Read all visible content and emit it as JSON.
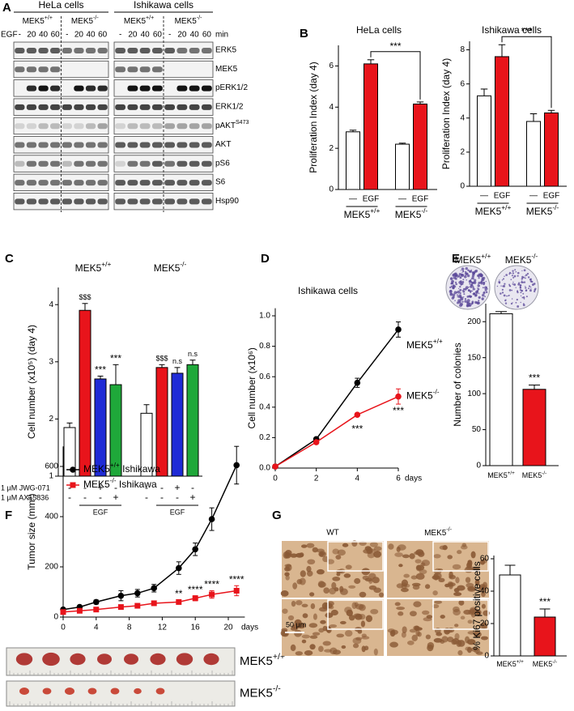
{
  "panel_letters": [
    "A",
    "B",
    "C",
    "D",
    "E",
    "F",
    "G"
  ],
  "panel_a": {
    "cell_lines": [
      "HeLa cells",
      "Ishikawa cells"
    ],
    "genotypes": [
      {
        "text": "MEK5",
        "sup": "+/+"
      },
      {
        "text": "MEK5",
        "sup": "-/-"
      }
    ],
    "treatment": "EGF",
    "timepoints": [
      "-",
      "20",
      "40",
      "60"
    ],
    "time_unit": "min",
    "proteins": [
      "ERK5",
      "MEK5",
      "pERK1/2",
      "ERK1/2",
      {
        "text": "pAKT",
        "sup": "S473"
      },
      "AKT",
      "pS6",
      "S6",
      "Hsp90"
    ]
  },
  "chart_data": [
    {
      "type": "bar",
      "title": "HeLa cells",
      "ylabel": "Proliferation Index (day 4)",
      "categories": [
        "—",
        "EGF",
        "—",
        "EGF"
      ],
      "groups": [
        {
          "text": "MEK5",
          "sup": "+/+"
        },
        {
          "text": "MEK5",
          "sup": "-/-"
        }
      ],
      "values": [
        2.8,
        6.1,
        2.2,
        4.15
      ],
      "errors": [
        0.08,
        0.2,
        0.05,
        0.1
      ],
      "colors": [
        "#ffffff",
        "#e8141b",
        "#ffffff",
        "#e8141b"
      ],
      "ylim": [
        0,
        7
      ],
      "yticks": [
        0,
        2,
        4,
        6
      ],
      "significance": "***"
    },
    {
      "type": "bar",
      "title": "Ishikawa cells",
      "ylabel": "Proliferation Index (day 4)",
      "categories": [
        "—",
        "EGF",
        "—",
        "EGF"
      ],
      "groups": [
        {
          "text": "MEK5",
          "sup": "+/+"
        },
        {
          "text": "MEK5",
          "sup": "-/-"
        }
      ],
      "values": [
        5.3,
        7.6,
        3.8,
        4.3
      ],
      "errors": [
        0.4,
        0.7,
        0.45,
        0.15
      ],
      "colors": [
        "#ffffff",
        "#e8141b",
        "#ffffff",
        "#e8141b"
      ],
      "ylim": [
        0,
        8.5
      ],
      "yticks": [
        0,
        2,
        4,
        6,
        8
      ],
      "significance": "***"
    },
    {
      "type": "bar",
      "ylabel": "Cell number (x10⁵) (day 4)",
      "groups": [
        {
          "text": "MEK5",
          "sup": "+/+"
        },
        {
          "text": "MEK5",
          "sup": "-/-"
        }
      ],
      "values": [
        1.85,
        3.9,
        2.7,
        2.6,
        2.1,
        2.9,
        2.8,
        2.95
      ],
      "errors": [
        0.08,
        0.12,
        0.05,
        0.35,
        0.15,
        0.05,
        0.1,
        0.08
      ],
      "colors": [
        "#ffffff",
        "#e8141b",
        "#1f2bd6",
        "#1fa83a",
        "#ffffff",
        "#e8141b",
        "#1f2bd6",
        "#1fa83a"
      ],
      "value_annotations": [
        null,
        "$$$",
        "***",
        "***",
        null,
        "$$$",
        "n.s",
        "n.s"
      ],
      "treatments": [
        {
          "name": "1 µM JWG-071",
          "levels": [
            "-",
            "-",
            "+",
            "-",
            "-",
            "-",
            "+",
            "-"
          ]
        },
        {
          "name": "1 µM AX15836",
          "levels": [
            "-",
            "-",
            "-",
            "+",
            "-",
            "-",
            "-",
            "+"
          ]
        }
      ],
      "stimulus": "EGF",
      "ylim": [
        1,
        4.3
      ],
      "yticks": [
        1,
        2,
        3,
        4
      ]
    },
    {
      "type": "line",
      "title": "Ishikawa cells",
      "ylabel": "Cell number (x10⁶)",
      "xlabel": "days",
      "x": [
        0,
        2,
        4,
        6
      ],
      "xlim": [
        0,
        6
      ],
      "xticks": [
        0,
        2,
        4,
        6
      ],
      "ylim": [
        0,
        1.05
      ],
      "yticks": [
        {
          "value": 0,
          "label": "0.0"
        },
        0.2,
        0.4,
        0.6,
        0.8,
        {
          "value": 1,
          "label": "1.0"
        }
      ],
      "series": [
        {
          "name": {
            "text": "MEK5",
            "sup": "+/+"
          },
          "color": "#000000",
          "marker": "circle",
          "values": [
            0.01,
            0.19,
            0.56,
            0.91
          ],
          "errors": [
            0.005,
            0.01,
            0.03,
            0.05
          ]
        },
        {
          "name": {
            "text": "MEK5",
            "sup": "-/-"
          },
          "color": "#e8141b",
          "marker": "circle",
          "values": [
            0.01,
            0.17,
            0.35,
            0.47
          ],
          "errors": [
            0.005,
            0.01,
            0.01,
            0.05
          ],
          "significance": [
            null,
            null,
            "***",
            "***"
          ]
        }
      ]
    },
    {
      "type": "bar",
      "ylabel": "Number of colonies",
      "categories": [
        {
          "text": "MEK5",
          "sup": "+/+"
        },
        {
          "text": "MEK5",
          "sup": "-/-"
        }
      ],
      "values": [
        211,
        106
      ],
      "errors": [
        3,
        6
      ],
      "colors": [
        "#ffffff",
        "#e8141b"
      ],
      "ylim": [
        0,
        225
      ],
      "yticks": [
        0,
        50,
        100,
        150,
        200
      ],
      "significance": "***",
      "images": [
        {
          "text": "MEK5",
          "sup": "+/+"
        },
        {
          "text": "MEK5",
          "sup": "-/-"
        }
      ],
      "image_label_colors": [
        "#000000",
        "#e8141b"
      ]
    },
    {
      "type": "line",
      "ylabel": "Tumor size (mm³)",
      "xlabel": "days",
      "legend": "upper left",
      "x": [
        0,
        2,
        4,
        7,
        9,
        11,
        14,
        16,
        18,
        21
      ],
      "xlim": [
        0,
        22
      ],
      "xticks": [
        0,
        4,
        8,
        12,
        16,
        20
      ],
      "ylim": [
        0,
        680
      ],
      "yticks": [
        0,
        200,
        400,
        600
      ],
      "series": [
        {
          "name": {
            "text": "MEK5",
            "sup": "+/+",
            "suffix": " Ishikawa"
          },
          "color": "#000000",
          "marker": "circle",
          "values": [
            30,
            40,
            60,
            85,
            95,
            115,
            195,
            270,
            390,
            605
          ],
          "errors": [
            5,
            5,
            8,
            20,
            15,
            15,
            25,
            25,
            45,
            75
          ]
        },
        {
          "name": {
            "text": "MEK5",
            "sup": "-/-",
            "suffix": " Ishikawa"
          },
          "color": "#e8141b",
          "marker": "square",
          "values": [
            20,
            25,
            30,
            40,
            45,
            55,
            60,
            75,
            90,
            105
          ],
          "errors": [
            5,
            5,
            5,
            5,
            8,
            8,
            8,
            10,
            15,
            20
          ],
          "significance": [
            null,
            null,
            null,
            null,
            null,
            null,
            "**",
            "****",
            "****",
            "****"
          ]
        }
      ],
      "photo_labels": [
        {
          "text": "MEK5",
          "sup": "+/+"
        },
        {
          "text": "MEK5",
          "sup": "-/-"
        }
      ],
      "photo_label_colors": [
        "#000000",
        "#e8141b"
      ]
    },
    {
      "type": "bar",
      "ylabel": "% Ki67 positive cells",
      "categories": [
        {
          "text": "MEK5",
          "sup": "+/+"
        },
        {
          "text": "MEK5",
          "sup": "-/-"
        }
      ],
      "values": [
        50,
        24
      ],
      "errors": [
        6,
        5
      ],
      "colors": [
        "#ffffff",
        "#e8141b"
      ],
      "ylim": [
        0,
        62
      ],
      "yticks": [
        0,
        20,
        40,
        60
      ],
      "significance": "***",
      "image_labels": [
        "WT",
        {
          "text": "MEK5",
          "sup": "-/-"
        }
      ],
      "scale_bar": "50 µm"
    }
  ]
}
